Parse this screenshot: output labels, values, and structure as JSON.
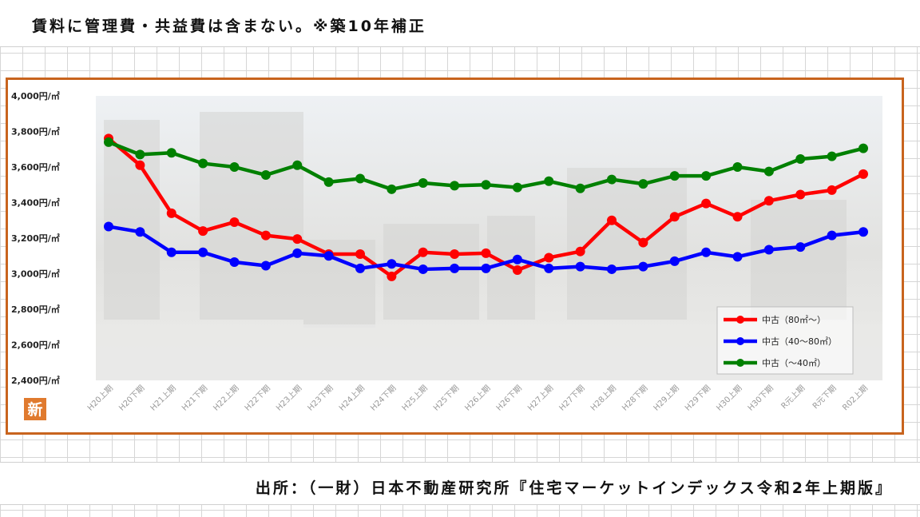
{
  "note": "賃料に管理費・共益費は含まない。※築10年補正",
  "source": "出所：（一財）日本不動産研究所『住宅マーケットインデックス令和2年上期版』",
  "badge": "新",
  "colors": {
    "frame": "#c8641e",
    "red": "#ff0000",
    "blue": "#0000ff",
    "green": "#008000",
    "badge": "#e07a2e"
  },
  "chart_data": {
    "type": "line",
    "ylim": [
      2400,
      4000
    ],
    "y_ticks": [
      {
        "value": 2400,
        "label": "2,400円/㎡"
      },
      {
        "value": 2600,
        "label": "2,600円/㎡"
      },
      {
        "value": 2800,
        "label": "2,800円/㎡"
      },
      {
        "value": 3000,
        "label": "3,000円/㎡"
      },
      {
        "value": 3200,
        "label": "3,200円/㎡"
      },
      {
        "value": 3400,
        "label": "3,400円/㎡"
      },
      {
        "value": 3600,
        "label": "3,600円/㎡"
      },
      {
        "value": 3800,
        "label": "3,800円/㎡"
      },
      {
        "value": 4000,
        "label": "4,000円/㎡"
      }
    ],
    "categories": [
      "H20上期",
      "H20下期",
      "H21上期",
      "H21下期",
      "H22上期",
      "H22下期",
      "H23上期",
      "H23下期",
      "H24上期",
      "H24下期",
      "H25上期",
      "H25下期",
      "H26上期",
      "H26下期",
      "H27上期",
      "H27下期",
      "H28上期",
      "H28下期",
      "H29上期",
      "H29下期",
      "H30上期",
      "H30下期",
      "R元上期",
      "R元下期",
      "R02上期"
    ],
    "legend_position": "bottom-right",
    "series": [
      {
        "name": "中古（80㎡～）",
        "color": "#ff0000",
        "values": [
          3760,
          3610,
          3340,
          3240,
          3290,
          3215,
          3195,
          3110,
          3110,
          2985,
          3120,
          3110,
          3115,
          3020,
          3090,
          3125,
          3300,
          3175,
          3320,
          3395,
          3320,
          3410,
          3445,
          3470,
          3560
        ]
      },
      {
        "name": "中古（40～80㎡）",
        "color": "#0000ff",
        "values": [
          3265,
          3235,
          3120,
          3120,
          3065,
          3045,
          3115,
          3100,
          3030,
          3055,
          3025,
          3030,
          3030,
          3080,
          3030,
          3040,
          3025,
          3040,
          3070,
          3120,
          3095,
          3135,
          3150,
          3215,
          3235
        ]
      },
      {
        "name": "中古（～40㎡）",
        "color": "#008000",
        "values": [
          3740,
          3670,
          3680,
          3620,
          3600,
          3555,
          3610,
          3515,
          3535,
          3475,
          3510,
          3495,
          3500,
          3485,
          3520,
          3480,
          3530,
          3505,
          3550,
          3550,
          3600,
          3575,
          3645,
          3660,
          3705
        ]
      }
    ]
  }
}
